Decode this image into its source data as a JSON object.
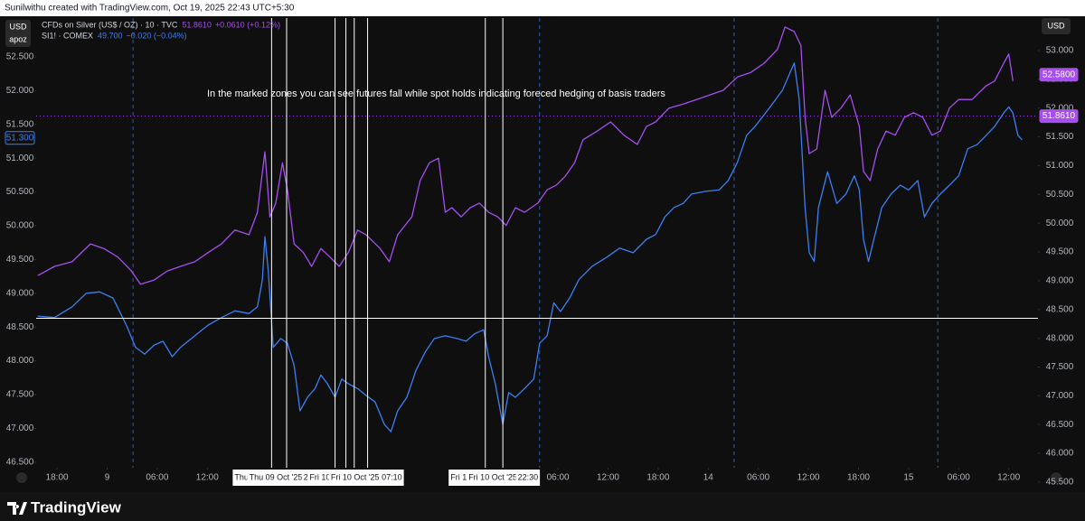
{
  "header": "Sunilwithu created with TradingView.com, Oct 19, 2025 22:43 UTC+5:30",
  "footer": "TradingView",
  "left_axis_title": "USD",
  "left_axis_subtitle": "apoz",
  "right_axis_title": "USD",
  "chart_data": {
    "type": "line",
    "annotation": "In the marked zones you can see futures fall while spot holds indicating foreced hedging of basis traders",
    "xlim": [
      -2.5,
      117.5
    ],
    "xticks": [
      {
        "value": 0,
        "label": "18:00"
      },
      {
        "value": 6,
        "label": "9"
      },
      {
        "value": 12,
        "label": "06:00"
      },
      {
        "value": 18,
        "label": "12:00"
      },
      {
        "value": 60,
        "label": "06:00"
      },
      {
        "value": 66,
        "label": "12:00"
      },
      {
        "value": 72,
        "label": "18:00"
      },
      {
        "value": 78,
        "label": "14"
      },
      {
        "value": 84,
        "label": "06:00"
      },
      {
        "value": 90,
        "label": "12:00"
      },
      {
        "value": 96,
        "label": "18:00"
      },
      {
        "value": 102,
        "label": "15"
      },
      {
        "value": 108,
        "label": "06:00"
      },
      {
        "value": 114,
        "label": "12:00"
      }
    ],
    "ylim": [
      46.123,
      53.075
    ],
    "yticks": [
      {
        "value": 46.5,
        "label": "46.500"
      },
      {
        "value": 47,
        "label": "47.000"
      },
      {
        "value": 47.5,
        "label": "47.500"
      },
      {
        "value": 48,
        "label": "48.000"
      },
      {
        "value": 48.5,
        "label": "48.500"
      },
      {
        "value": 49,
        "label": "49.000"
      },
      {
        "value": 49.5,
        "label": "49.500"
      },
      {
        "value": 50,
        "label": "50.000"
      },
      {
        "value": 50.5,
        "label": "50.500"
      },
      {
        "value": 51,
        "label": "51.000"
      },
      {
        "value": 51.5,
        "label": "51.500"
      },
      {
        "value": 52,
        "label": "52.000"
      },
      {
        "value": 52.5,
        "label": "52.500"
      }
    ],
    "y2lim": [
      45.405,
      53.565
    ],
    "y2ticks": [
      {
        "value": 45.5,
        "label": "45.500"
      },
      {
        "value": 46,
        "label": "46.000"
      },
      {
        "value": 46.5,
        "label": "46.500"
      },
      {
        "value": 47,
        "label": "47.000"
      },
      {
        "value": 47.5,
        "label": "47.500"
      },
      {
        "value": 48,
        "label": "48.000"
      },
      {
        "value": 48.5,
        "label": "48.500"
      },
      {
        "value": 49,
        "label": "49.000"
      },
      {
        "value": 49.5,
        "label": "49.500"
      },
      {
        "value": 50,
        "label": "50.000"
      },
      {
        "value": 50.5,
        "label": "50.500"
      },
      {
        "value": 51,
        "label": "51.000"
      },
      {
        "value": 51.5,
        "label": "51.500"
      },
      {
        "value": 52,
        "label": "52.000"
      },
      {
        "value": 52.5,
        "label": "52.500"
      },
      {
        "value": 53,
        "label": "53.000"
      }
    ],
    "grid": false,
    "series": [
      {
        "name": "CFDs on Silver (US$ / OZ) · 10 · TVC",
        "legend_value": "51.8610",
        "legend_change": "+0.0610 (+0.12%)",
        "color": "#a64ef0",
        "axis": "y2",
        "x": [
          -2.3,
          -0.3,
          1.8,
          4.0,
          5.6,
          7.3,
          8.9,
          10.0,
          11.6,
          13.2,
          14.8,
          16.5,
          18.1,
          19.7,
          21.3,
          23.0,
          24.0,
          24.9,
          25.5,
          26.2,
          27.0,
          27.6,
          28.4,
          29.5,
          30.5,
          31.6,
          32.7,
          33.8,
          34.9,
          36.0,
          37.0,
          38.7,
          39.8,
          40.8,
          42.5,
          43.5,
          44.6,
          45.7,
          46.5,
          47.3,
          48.4,
          49.5,
          50.6,
          51.7,
          52.8,
          53.8,
          54.9,
          56.0,
          57.6,
          58.7,
          59.8,
          60.9,
          62.0,
          63.0,
          64.7,
          66.3,
          67.9,
          69.5,
          70.6,
          71.7,
          73.3,
          75.0,
          76.6,
          78.2,
          79.8,
          81.5,
          83.1,
          84.7,
          86.3,
          87.2,
          88.3,
          89.1,
          89.6,
          90.1,
          91.0,
          92.0,
          92.8,
          93.9,
          95.0,
          96.1,
          96.6,
          97.4,
          98.3,
          99.3,
          100.4,
          101.5,
          102.6,
          103.7,
          104.8,
          105.8,
          106.9,
          108.0,
          109.6,
          111.3,
          112.3,
          113.4,
          114.0,
          114.5
        ],
        "values": [
          49.09,
          49.25,
          49.33,
          49.64,
          49.56,
          49.41,
          49.17,
          48.94,
          49.01,
          49.17,
          49.25,
          49.33,
          49.49,
          49.64,
          49.88,
          49.8,
          50.19,
          51.24,
          50.11,
          50.35,
          51.05,
          50.58,
          49.64,
          49.49,
          49.25,
          49.56,
          49.41,
          49.25,
          49.49,
          49.88,
          49.8,
          49.56,
          49.33,
          49.8,
          50.11,
          50.74,
          51.05,
          51.13,
          50.19,
          50.27,
          50.11,
          50.27,
          50.35,
          50.19,
          50.11,
          49.96,
          50.27,
          50.19,
          50.35,
          50.58,
          50.66,
          50.82,
          51.05,
          51.45,
          51.6,
          51.76,
          51.53,
          51.37,
          51.68,
          51.76,
          52.0,
          52.07,
          52.15,
          52.23,
          52.31,
          52.54,
          52.62,
          52.78,
          53.02,
          53.41,
          53.33,
          53.09,
          51.84,
          51.21,
          51.29,
          52.31,
          51.84,
          52.0,
          52.23,
          51.68,
          50.9,
          50.74,
          51.29,
          51.6,
          51.53,
          51.84,
          51.92,
          51.84,
          51.53,
          51.6,
          52.0,
          52.15,
          52.15,
          52.39,
          52.47,
          52.78,
          52.94,
          52.47
        ]
      },
      {
        "name": "SI1! · COMEX",
        "legend_value": "49.700",
        "legend_change": "−0.020 (−0.04%)",
        "color": "#3b7ff2",
        "axis": "y",
        "x": [
          -2.3,
          -0.3,
          1.8,
          3.5,
          5.1,
          6.7,
          8.3,
          9.4,
          10.5,
          11.6,
          12.7,
          13.8,
          14.8,
          16.5,
          18.1,
          19.7,
          21.3,
          23.0,
          24.0,
          24.6,
          24.9,
          25.3,
          25.9,
          26.8,
          27.6,
          28.4,
          29.1,
          30.0,
          30.9,
          31.6,
          32.4,
          33.3,
          34.1,
          34.9,
          36.0,
          37.0,
          38.1,
          39.2,
          40.0,
          40.8,
          41.9,
          43.0,
          44.1,
          45.2,
          46.5,
          47.9,
          49.0,
          50.0,
          51.1,
          51.7,
          52.5,
          53.4,
          54.1,
          54.9,
          56.0,
          57.1,
          57.8,
          58.7,
          59.5,
          60.3,
          61.4,
          62.5,
          64.1,
          65.8,
          67.4,
          69.0,
          70.6,
          71.7,
          72.8,
          73.9,
          75.0,
          76.0,
          77.7,
          79.3,
          80.4,
          81.5,
          82.6,
          83.6,
          85.3,
          86.9,
          88.3,
          88.9,
          89.6,
          90.1,
          90.7,
          91.2,
          92.3,
          93.4,
          94.5,
          95.5,
          96.1,
          96.6,
          97.2,
          97.7,
          98.8,
          99.9,
          101.0,
          102.0,
          103.1,
          103.9,
          104.8,
          105.8,
          106.9,
          108.0,
          109.1,
          110.2,
          111.3,
          112.3,
          113.4,
          114.0,
          114.5,
          115.1,
          115.6
        ],
        "values": [
          48.66,
          48.64,
          48.8,
          49.0,
          49.02,
          48.93,
          48.53,
          48.2,
          48.1,
          48.23,
          48.29,
          48.06,
          48.2,
          48.37,
          48.53,
          48.64,
          48.74,
          48.7,
          48.8,
          49.2,
          49.84,
          49.33,
          48.2,
          48.33,
          48.26,
          47.93,
          47.26,
          47.46,
          47.59,
          47.79,
          47.66,
          47.46,
          47.73,
          47.66,
          47.59,
          47.49,
          47.39,
          47.06,
          46.95,
          47.26,
          47.46,
          47.86,
          48.13,
          48.33,
          48.37,
          48.33,
          48.29,
          48.4,
          48.46,
          48.06,
          47.66,
          47.06,
          47.53,
          47.46,
          47.59,
          47.73,
          48.26,
          48.37,
          48.86,
          48.73,
          48.93,
          49.2,
          49.4,
          49.53,
          49.67,
          49.6,
          49.8,
          49.87,
          50.13,
          50.27,
          50.33,
          50.47,
          50.51,
          50.53,
          50.67,
          50.94,
          51.34,
          51.47,
          51.74,
          52.01,
          52.41,
          51.87,
          50.27,
          49.6,
          49.47,
          50.27,
          50.8,
          50.33,
          50.47,
          50.74,
          50.53,
          49.8,
          49.47,
          49.73,
          50.27,
          50.47,
          50.6,
          50.53,
          50.67,
          50.13,
          50.33,
          50.47,
          50.6,
          50.74,
          51.14,
          51.2,
          51.34,
          51.47,
          51.67,
          51.76,
          51.67,
          51.34,
          51.27
        ]
      }
    ],
    "badges": [
      {
        "axis": "y",
        "value": 51.3,
        "label": "51.300",
        "color": "#3b7ff2"
      },
      {
        "axis": "y2",
        "value": 52.58,
        "label": "52.5800",
        "color": "#a64ef0"
      },
      {
        "axis": "y2",
        "value": 51.861,
        "label": "51.8610",
        "color": "#a64ef0"
      }
    ],
    "marker_lines": [
      25.7,
      27.5,
      33.3,
      34.6,
      35.6,
      37.2,
      51.3,
      53.4
    ],
    "session_breaks": [
      9.1,
      57.8,
      81.1,
      105.5
    ],
    "crosshair_y": 48.63,
    "price_line_y2": 51.861,
    "time_labels": [
      {
        "x": 22.1,
        "label": "Thu"
      },
      {
        "x": 26.2,
        "label": "Thu 09 Oct '25"
      },
      {
        "x": 29.8,
        "label": "2"
      },
      {
        "x": 31.5,
        "label": "Fri 10"
      },
      {
        "x": 35.7,
        "label": "Fri 10 Oct '25"
      },
      {
        "x": 40.1,
        "label": "07:10"
      },
      {
        "x": 48.1,
        "label": "Fri 1"
      },
      {
        "x": 52.2,
        "label": "Fri 10 Oct '25"
      },
      {
        "x": 56.4,
        "label": "22:30"
      }
    ]
  }
}
